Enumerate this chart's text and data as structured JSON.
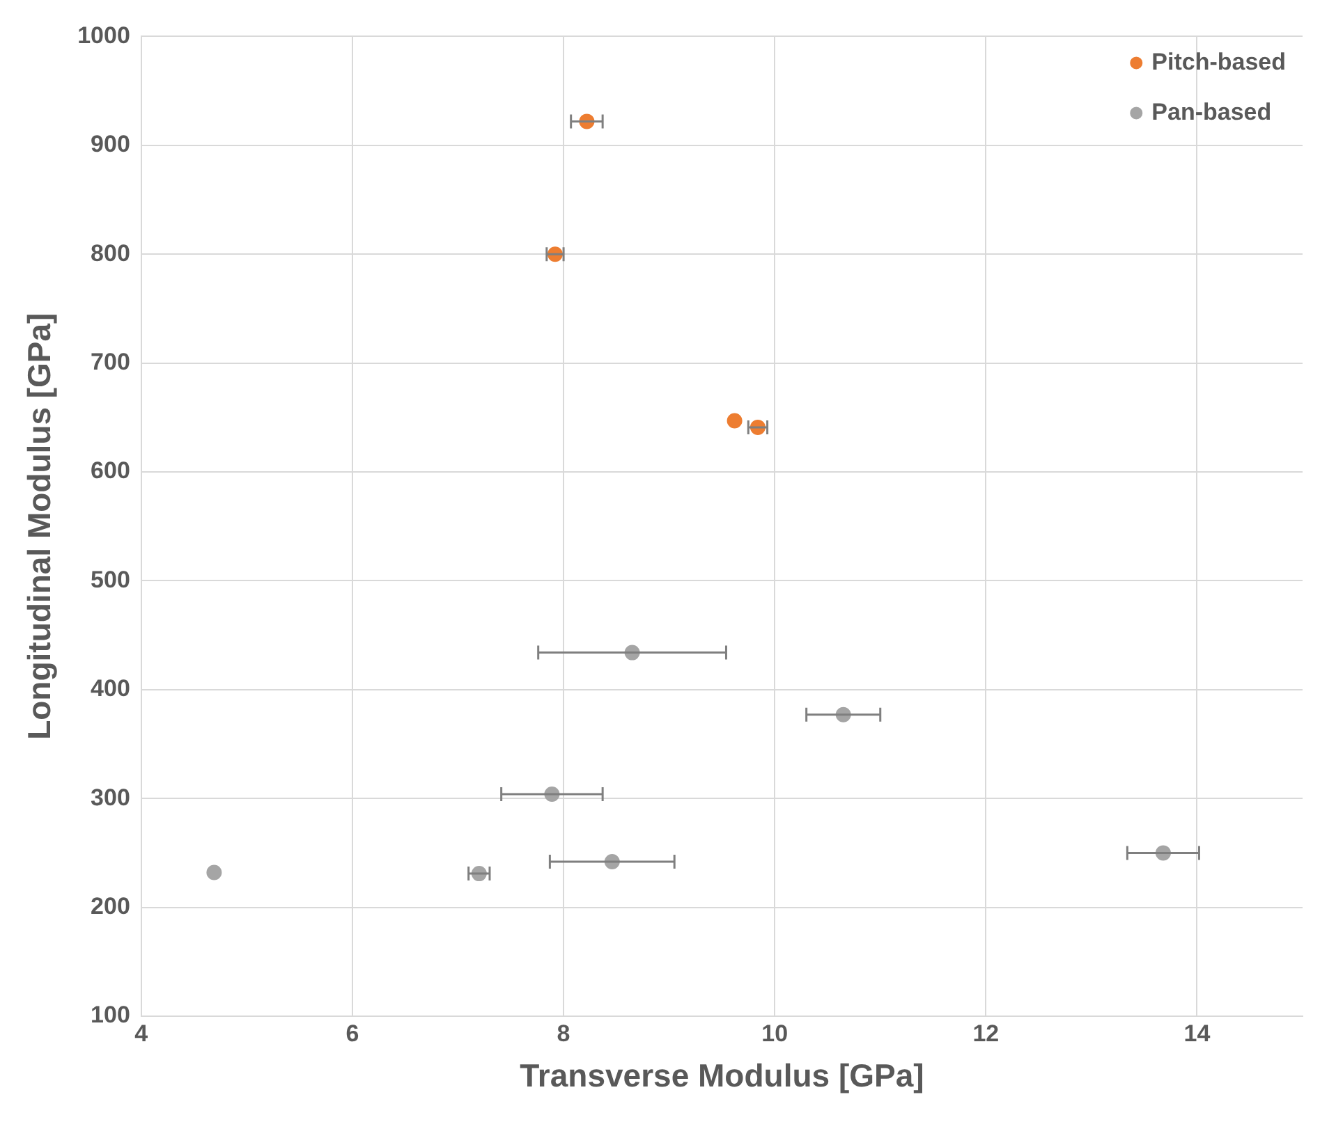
{
  "chart_data": {
    "type": "scatter",
    "xlabel": "Transverse Modulus [GPa]",
    "ylabel": "Longitudinal Modulus [GPa]",
    "series": [
      {
        "name": "Pitch-based",
        "color": "#ed7d31",
        "x": [
          8.22,
          7.92,
          9.62,
          9.84
        ],
        "values": [
          922,
          800,
          647,
          641
        ],
        "xerrors": [
          0.15,
          0.08,
          null,
          0.09
        ]
      },
      {
        "name": "Pan-based",
        "color": "#a5a5a5",
        "x": [
          8.65,
          7.89,
          4.69,
          7.2,
          8.46,
          10.65,
          13.68
        ],
        "values": [
          434,
          304,
          232,
          231,
          242,
          377,
          250
        ],
        "xerrors": [
          0.89,
          0.48,
          null,
          0.1,
          0.59,
          0.35,
          0.34
        ]
      }
    ],
    "xlim": [
      4,
      15
    ],
    "xticks": [
      4,
      6,
      8,
      10,
      12,
      14
    ],
    "ylim": [
      100,
      1000
    ],
    "yticks": [
      100,
      200,
      300,
      400,
      500,
      600,
      700,
      800,
      900,
      1000
    ],
    "grid": true,
    "legend": "top right",
    "marker": "circle"
  }
}
